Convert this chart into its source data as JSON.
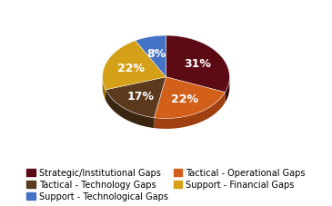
{
  "labels": [
    "Strategic/Institutional Gaps",
    "Tactical - Operational Gaps",
    "Tactical - Technology Gaps",
    "Support - Financial Gaps",
    "Support - Technological Gaps"
  ],
  "values": [
    31,
    22,
    17,
    22,
    8
  ],
  "colors": [
    "#5C0A14",
    "#D2601A",
    "#5C3A1E",
    "#D4A017",
    "#4472C4"
  ],
  "shadow_colors": [
    "#3a0509",
    "#a04010",
    "#3a2510",
    "#a07800",
    "#2a5090"
  ],
  "pct_labels": [
    "31%",
    "22%",
    "17%",
    "22%",
    "8%"
  ],
  "startangle": 90,
  "legend_fontsize": 7.0,
  "pct_fontsize": 9,
  "legend_order": [
    0,
    2,
    4,
    1,
    3
  ]
}
